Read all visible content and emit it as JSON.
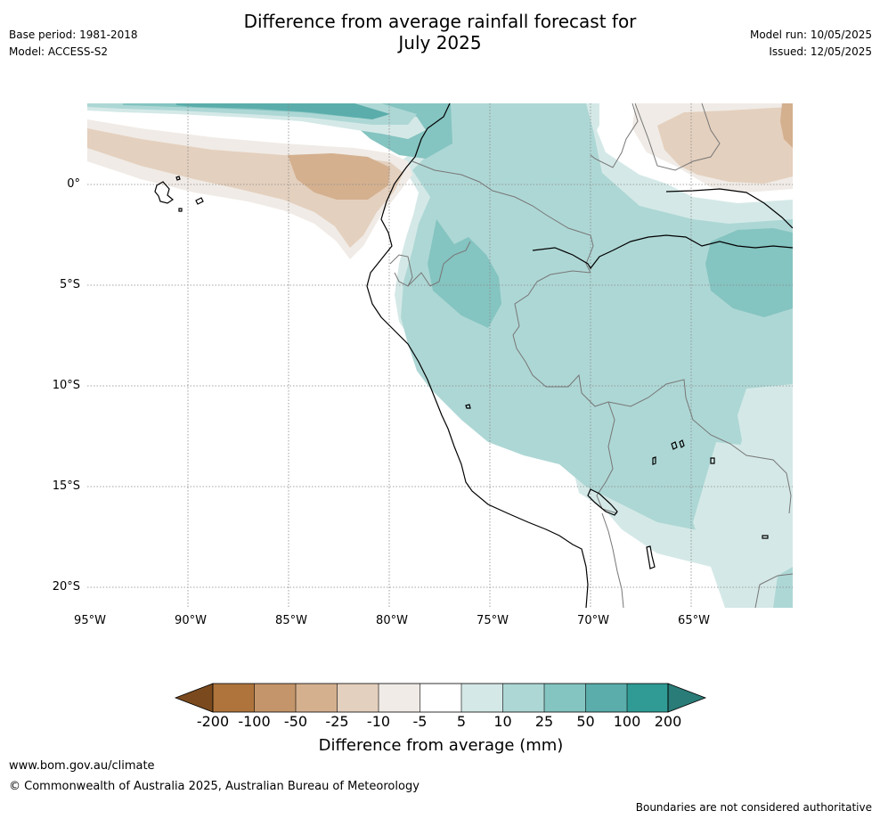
{
  "header": {
    "title_line1": "Difference from average rainfall forecast for",
    "title_line2": "July 2025",
    "base_period": "Base period: 1981-2018",
    "model": "Model: ACCESS-S2",
    "model_run": "Model run: 10/05/2025",
    "issued": "Issued: 12/05/2025"
  },
  "map": {
    "lat_labels": [
      "0°",
      "5°S",
      "10°S",
      "15°S",
      "20°S"
    ],
    "lon_labels": [
      "95°W",
      "90°W",
      "85°W",
      "80°W",
      "75°W",
      "70°W",
      "65°W"
    ],
    "colors": {
      "neg200": "#7a4a1e",
      "neg100": "#ae743c",
      "neg50": "#c4956a",
      "neg25": "#d4b08f",
      "neg10": "#e4d0be",
      "neg5": "#f0ebe6",
      "zero": "#ffffff",
      "pos5": "#d4e9e7",
      "pos10": "#add7d5",
      "pos25": "#84c4c1",
      "pos50": "#5aadaa",
      "pos100": "#2f9b94",
      "pos200": "#2a7c78",
      "coast": "#000000",
      "border": "#777777",
      "grid": "#888888"
    }
  },
  "colorbar": {
    "ticks": [
      "-200",
      "-100",
      "-50",
      "-25",
      "-10",
      "-5",
      "5",
      "10",
      "25",
      "50",
      "100",
      "200"
    ],
    "label": "Difference from average (mm)"
  },
  "footer": {
    "url": "www.bom.gov.au/climate",
    "copyright": "© Commonwealth of Australia 2025, Australian Bureau of Meteorology",
    "disclaimer": "Boundaries are not considered authoritative"
  }
}
